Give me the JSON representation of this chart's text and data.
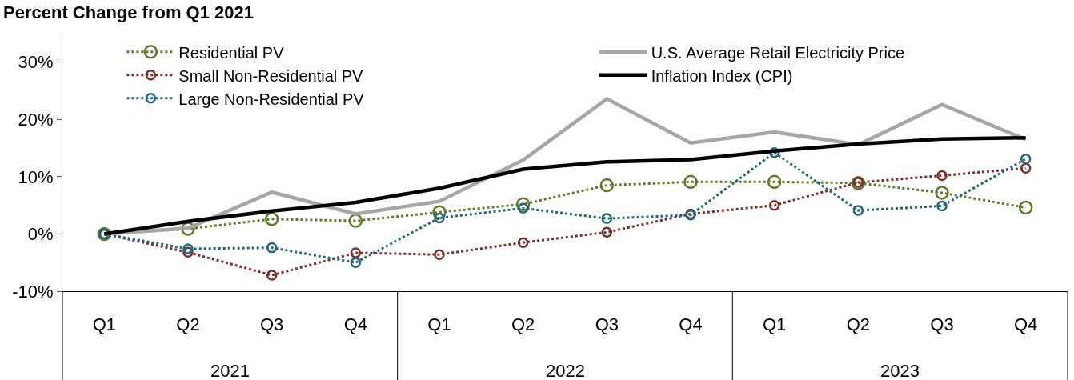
{
  "chart_data": {
    "type": "line",
    "title": "Percent Change from Q1 2021",
    "categories": [
      "Q1",
      "Q2",
      "Q3",
      "Q4",
      "Q1",
      "Q2",
      "Q3",
      "Q4",
      "Q1",
      "Q2",
      "Q3",
      "Q4"
    ],
    "annotations": [
      "2021",
      "2022",
      "2023"
    ],
    "series": [
      {
        "name": "Residential PV",
        "color": "#5e7a2a",
        "marker": "circle",
        "line_style": "dotted",
        "values": [
          0,
          0.9,
          2.6,
          2.3,
          3.8,
          5.2,
          8.5,
          9.1,
          9.1,
          8.9,
          7.2,
          4.6
        ]
      },
      {
        "name": "Small Non-Residential PV",
        "color": "#7b2c2c",
        "marker": "circle",
        "line_style": "dotted",
        "values": [
          0,
          -3.2,
          -7.2,
          -3.3,
          -3.6,
          -1.5,
          0.3,
          3.5,
          5.0,
          9.0,
          10.2,
          11.5
        ]
      },
      {
        "name": "Large Non-Residential PV",
        "color": "#236779",
        "marker": "circle",
        "line_style": "dotted",
        "values": [
          0,
          -2.6,
          -2.4,
          -5.0,
          2.8,
          4.5,
          2.7,
          3.3,
          14.2,
          4.1,
          4.9,
          13.1
        ]
      },
      {
        "name": "U.S. Average Retail Electricity Price",
        "color": "#a6a6a6",
        "marker": "none",
        "line_style": "solid",
        "values": [
          0,
          1.0,
          7.3,
          3.5,
          5.7,
          12.9,
          23.6,
          15.9,
          17.8,
          15.6,
          22.6,
          16.5
        ]
      },
      {
        "name": "Inflation Index (CPI)",
        "color": "#000000",
        "marker": "none",
        "line_style": "solid",
        "values": [
          0,
          2.2,
          4.0,
          5.5,
          8.0,
          11.3,
          12.6,
          13.0,
          14.5,
          15.7,
          16.6,
          16.8
        ]
      }
    ],
    "ylim": [
      -10,
      35
    ],
    "yticks": [
      {
        "value": -10,
        "label": "-10%"
      },
      {
        "value": 0,
        "label": "0%"
      },
      {
        "value": 10,
        "label": "10%"
      },
      {
        "value": 20,
        "label": "20%"
      },
      {
        "value": 30,
        "label": "30%"
      }
    ],
    "grid": false,
    "legend": "top"
  }
}
